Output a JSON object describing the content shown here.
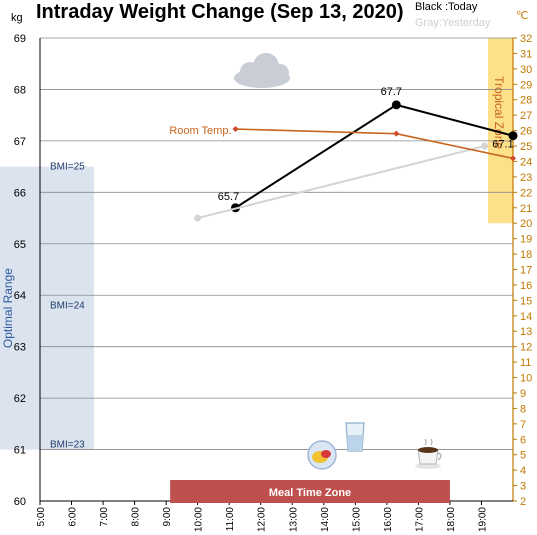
{
  "chart_data": {
    "type": "line",
    "title": "Intraday Weight Change (Sep 13, 2020)",
    "y_unit": "kg",
    "y2_unit": "℃",
    "ylim": [
      60,
      69
    ],
    "y_ticks": [
      "60",
      "61",
      "62",
      "63",
      "64",
      "65",
      "66",
      "67",
      "68",
      "69"
    ],
    "y2lim": [
      2,
      32
    ],
    "y2_ticks": [
      "2",
      "3",
      "4",
      "5",
      "6",
      "7",
      "8",
      "9",
      "10",
      "11",
      "12",
      "13",
      "14",
      "15",
      "16",
      "17",
      "18",
      "19",
      "20",
      "21",
      "22",
      "23",
      "24",
      "25",
      "26",
      "27",
      "28",
      "29",
      "30",
      "31",
      "32"
    ],
    "xlim": [
      5,
      20
    ],
    "x_ticks": [
      "5:00",
      "6:00",
      "7:00",
      "8:00",
      "9:00",
      "10:00",
      "11:00",
      "12:00",
      "13:00",
      "14:00",
      "15:00",
      "16:00",
      "17:00",
      "18:00",
      "19:00"
    ],
    "legend": {
      "today": "Black :Today",
      "yesterday": "Gray:Yesterday",
      "placement": "top-right"
    },
    "grid": true,
    "series": [
      {
        "key": "today",
        "color": "#000000",
        "points": [
          {
            "x": 11.2,
            "y": 65.7,
            "label": "65.7"
          },
          {
            "x": 16.3,
            "y": 67.7,
            "label": "67.7"
          },
          {
            "x": 20.0,
            "y": 67.1,
            "label": "67.1"
          }
        ]
      },
      {
        "key": "yesterday",
        "color": "#d4d4d4",
        "points": [
          {
            "x": 10.0,
            "y": 65.5
          },
          {
            "x": 19.1,
            "y": 66.9
          }
        ]
      },
      {
        "key": "room_temp",
        "name": "Room Temp.",
        "axis": "right",
        "color": "#c8641e",
        "points": [
          {
            "x": 11.2,
            "y": 26.1
          },
          {
            "x": 16.3,
            "y": 25.8
          },
          {
            "x": 20.0,
            "y": 24.2
          }
        ]
      }
    ],
    "bands": {
      "optimal_range": {
        "label": "Optimal Range",
        "y_from": 61.0,
        "y_to": 66.5,
        "color": "#dbe3ee"
      },
      "bmi_lines": [
        {
          "label": "BMI=25",
          "y": 66.5
        },
        {
          "label": "BMI=24",
          "y": 63.8
        },
        {
          "label": "BMI=23",
          "y": 61.1
        }
      ],
      "tropical_zone": {
        "label": "Tropical Zone",
        "temp_from": 20,
        "temp_to": 32,
        "x_from": 19.2,
        "x_to": 20.0,
        "color": "#fde08a"
      },
      "meal_time_zone": {
        "label": "Meal Time Zone",
        "x_from": 9.0,
        "x_to": 18.0,
        "color": "#c0504d"
      }
    },
    "icons": [
      "cloud-icon",
      "meal-plate-icon",
      "water-glass-icon",
      "coffee-cup-icon"
    ]
  }
}
